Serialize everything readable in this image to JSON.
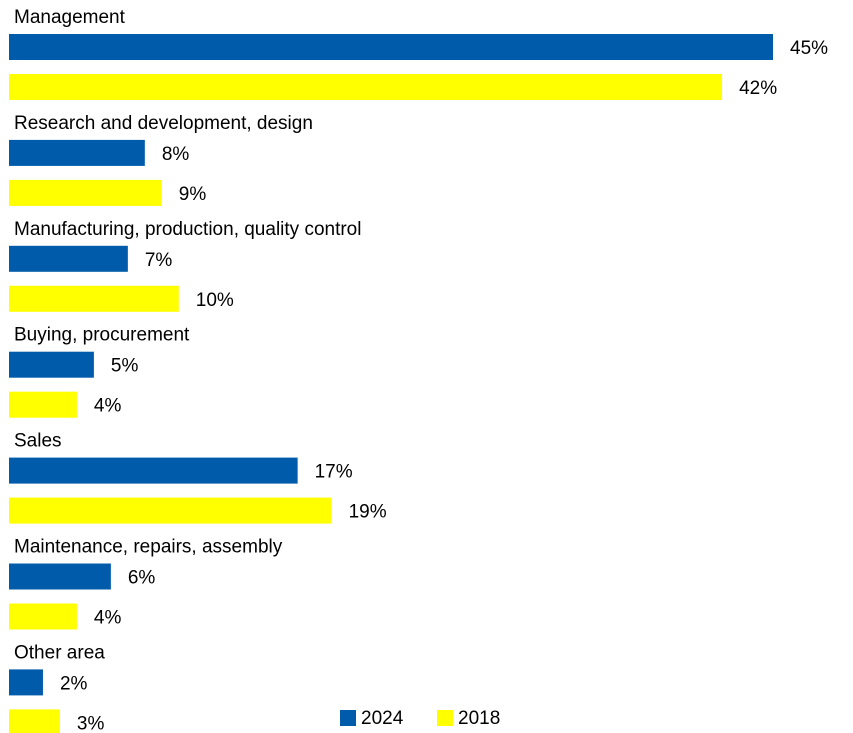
{
  "chart_data": {
    "type": "hbar",
    "categories": [
      "Management",
      "Research and development, design",
      "Manufacturing, production, quality control",
      "Buying, procurement",
      "Sales",
      "Maintenance, repairs, assembly",
      "Other area"
    ],
    "series": [
      {
        "name": "2024",
        "color": "#005baa",
        "values": [
          45,
          8,
          7,
          5,
          17,
          6,
          2
        ],
        "value_labels": [
          "45%",
          "8%",
          "7%",
          "5%",
          "17%",
          "6%",
          "2%"
        ]
      },
      {
        "name": "2018",
        "color": "#ffff00",
        "values": [
          42,
          9,
          10,
          4,
          19,
          4,
          3
        ],
        "value_labels": [
          "42%",
          "9%",
          "10%",
          "4%",
          "19%",
          "4%",
          "3%"
        ]
      }
    ],
    "legend": "bottom"
  }
}
